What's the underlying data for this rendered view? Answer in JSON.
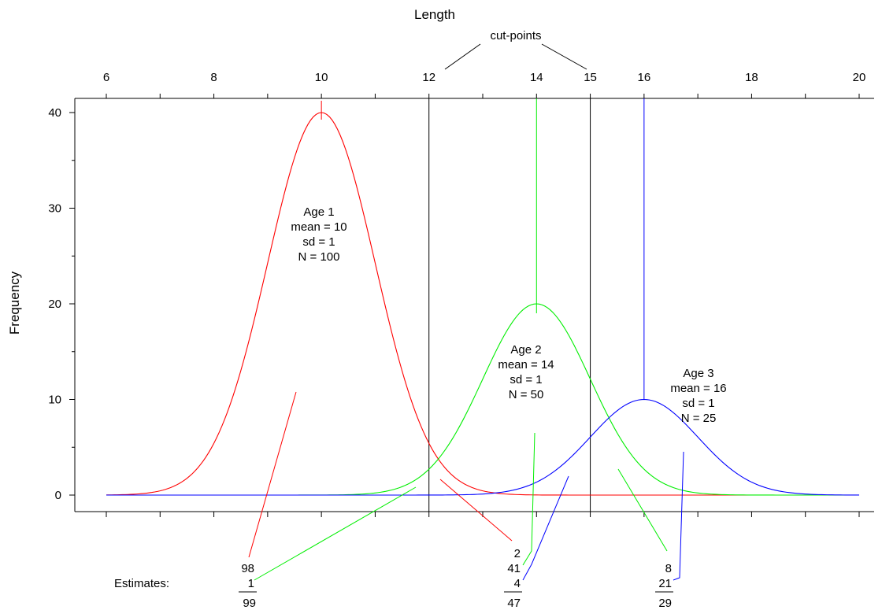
{
  "chart_data": {
    "type": "line",
    "title": "",
    "xlabel": "Length",
    "ylabel": "Frequency",
    "xlim": [
      6,
      20
    ],
    "ylim": [
      0,
      40
    ],
    "x_axis_position": "top",
    "x_ticks": [
      6,
      8,
      10,
      12,
      14,
      15,
      16,
      18,
      20
    ],
    "x_tick_labels": [
      "6",
      "8",
      "10",
      "12",
      "14",
      "15",
      "16",
      "18",
      "20"
    ],
    "y_ticks": [
      0,
      10,
      20,
      30,
      40
    ],
    "y_tick_labels": [
      "0",
      "10",
      "20",
      "30",
      "40"
    ],
    "grid": false,
    "legend": "none",
    "cutpoints": [
      12,
      15
    ],
    "cutpoints_label": "cut-points",
    "series": [
      {
        "name": "Age 1",
        "mean": 10,
        "sd": 1,
        "n": 100,
        "peak": 40,
        "color": "#ff0000",
        "label_lines": [
          "Age 1",
          "mean = 10",
          "sd = 1",
          "N = 100"
        ]
      },
      {
        "name": "Age 2",
        "mean": 14,
        "sd": 1,
        "n": 50,
        "peak": 20,
        "color": "#00ee00",
        "label_lines": [
          "Age 2",
          "mean = 14",
          "sd = 1",
          "N = 50"
        ]
      },
      {
        "name": "Age 3",
        "mean": 16,
        "sd": 1,
        "n": 25,
        "peak": 10,
        "color": "#0000ff",
        "label_lines": [
          "Age 3",
          "mean = 16",
          "sd = 1",
          "N = 25"
        ]
      }
    ],
    "estimates_label": "Estimates:",
    "estimates": [
      {
        "interval": "< 12",
        "age1": "98",
        "age2": "1",
        "age3": "",
        "total": "99"
      },
      {
        "interval": "12-15",
        "age1": "2",
        "age2": "41",
        "age3": "4",
        "total": "47"
      },
      {
        "interval": "> 15",
        "age1": "",
        "age2": "8",
        "age3": "21",
        "total": "29"
      }
    ]
  }
}
